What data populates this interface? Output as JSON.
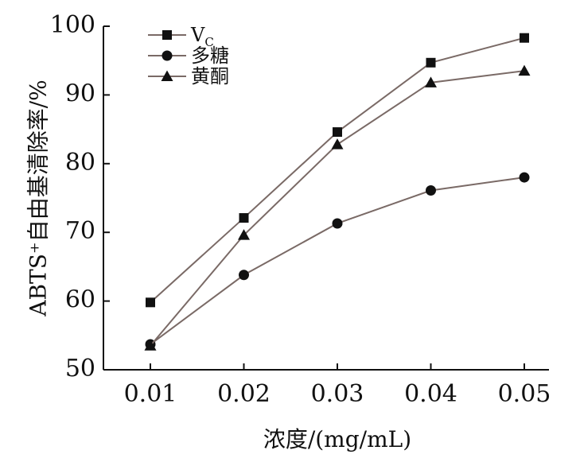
{
  "chart_data": {
    "type": "line",
    "xlabel": "浓度/(mg/mL)",
    "ylabel": "ABTS⁺自由基清除率/%",
    "x": [
      0.01,
      0.02,
      0.03,
      0.04,
      0.05
    ],
    "x_tick_labels": [
      "0.01",
      "0.02",
      "0.03",
      "0.04",
      "0.05"
    ],
    "y_ticks": [
      50,
      60,
      70,
      80,
      90,
      100
    ],
    "y_tick_labels": [
      "50",
      "60",
      "70",
      "80",
      "90",
      "100"
    ],
    "ylim": [
      50,
      100
    ],
    "grid": false,
    "legend_position": "top-left",
    "series": [
      {
        "name": "Vc",
        "name_base": "V",
        "name_sub": "C",
        "marker": "square",
        "values": [
          59.8,
          72.1,
          84.6,
          94.7,
          98.3
        ]
      },
      {
        "name": "多糖",
        "marker": "circle",
        "values": [
          53.7,
          63.8,
          71.3,
          76.1,
          78.0
        ]
      },
      {
        "name": "黄酮",
        "marker": "triangle",
        "values": [
          53.5,
          69.6,
          82.8,
          91.8,
          93.5
        ]
      }
    ],
    "colors": {
      "line": "#7a6a66",
      "marker": "#111111",
      "axis": "#111111"
    }
  }
}
